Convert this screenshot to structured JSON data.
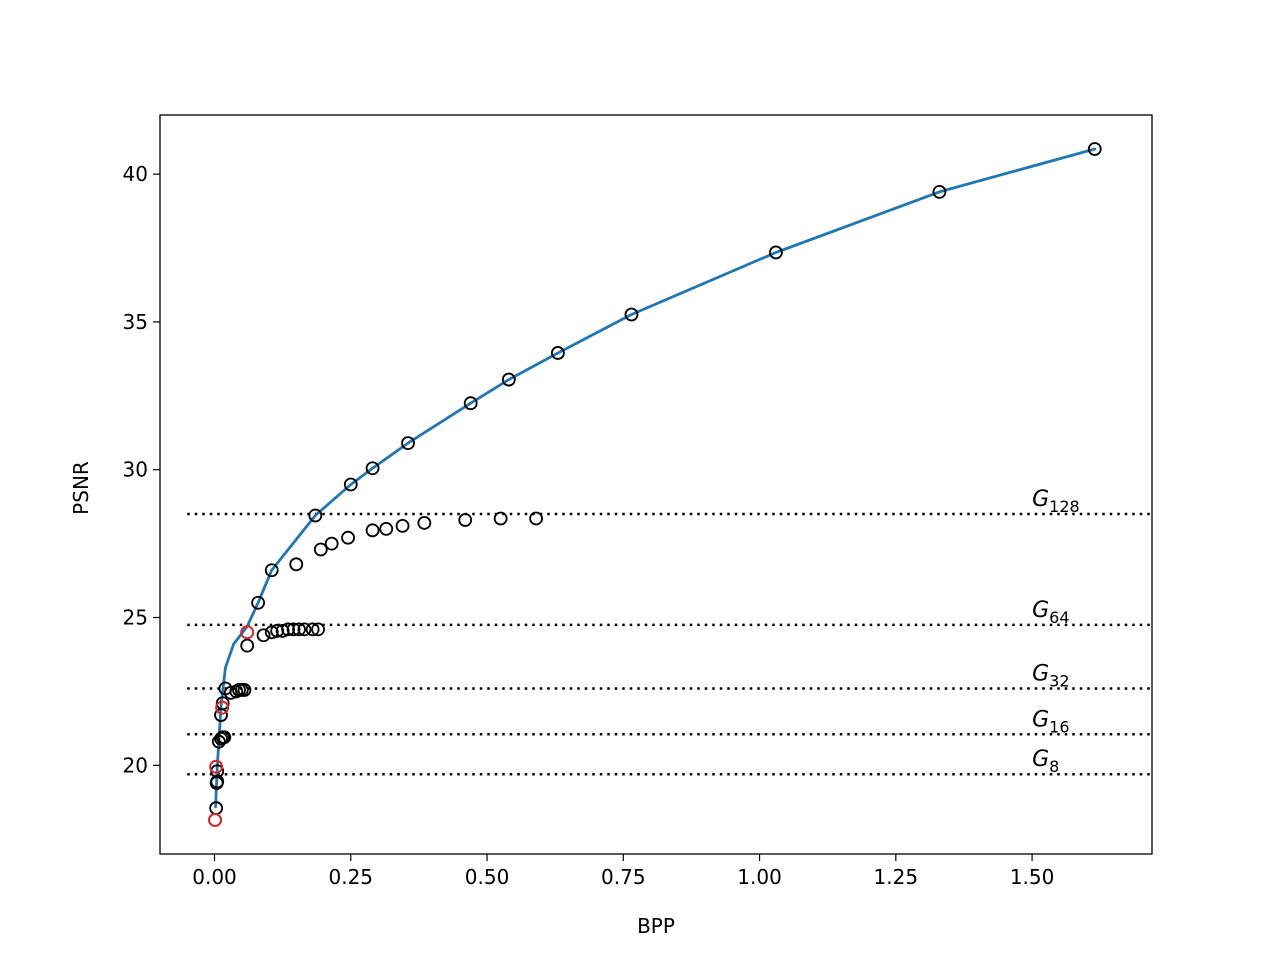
{
  "chart_data": {
    "type": "scatter",
    "title": "",
    "xlabel": "BPP",
    "ylabel": "PSNR",
    "xlim": [
      -0.1,
      1.72
    ],
    "ylim": [
      17.0,
      42.0
    ],
    "xticks": [
      0.0,
      0.25,
      0.5,
      0.75,
      1.0,
      1.25,
      1.5
    ],
    "xtick_labels": [
      "0.00",
      "0.25",
      "0.50",
      "0.75",
      "1.00",
      "1.25",
      "1.50"
    ],
    "yticks": [
      20,
      25,
      30,
      35,
      40
    ],
    "ytick_labels": [
      "20",
      "25",
      "30",
      "35",
      "40"
    ],
    "grid": false,
    "colors": {
      "curve": "#1f77b4",
      "marker": "#000000",
      "highlight": "#d62728",
      "reference": "#000000"
    },
    "series": [
      {
        "kind": "line",
        "x": [
          0.002,
          0.005,
          0.012,
          0.02,
          0.035,
          0.06,
          0.08,
          0.105,
          0.185,
          0.25,
          0.29,
          0.355,
          0.47,
          0.54,
          0.63,
          0.765,
          1.03,
          1.33,
          1.615
        ],
        "y": [
          18.6,
          19.9,
          22.0,
          23.3,
          24.1,
          24.7,
          25.5,
          26.6,
          28.45,
          29.5,
          30.05,
          30.9,
          32.25,
          33.05,
          33.95,
          35.25,
          37.35,
          39.4,
          40.85
        ]
      },
      {
        "kind": "scatter",
        "x": [
          0.185,
          0.25,
          0.29,
          0.355,
          0.47,
          0.54,
          0.63,
          0.765,
          1.03,
          1.33,
          1.615
        ],
        "y": [
          28.45,
          29.5,
          30.05,
          30.9,
          32.25,
          33.05,
          33.95,
          35.25,
          37.35,
          39.4,
          40.85
        ]
      },
      {
        "kind": "scatter",
        "x": [
          0.105,
          0.15,
          0.195,
          0.215,
          0.245,
          0.29,
          0.315,
          0.345,
          0.385,
          0.46,
          0.525,
          0.59
        ],
        "y": [
          26.6,
          26.8,
          27.3,
          27.5,
          27.7,
          27.95,
          28.0,
          28.1,
          28.2,
          28.3,
          28.35,
          28.35
        ]
      },
      {
        "kind": "scatter",
        "x": [
          0.06,
          0.08,
          0.09,
          0.105,
          0.115,
          0.125,
          0.135,
          0.145,
          0.155,
          0.165,
          0.18,
          0.19
        ],
        "y": [
          24.05,
          25.5,
          24.4,
          24.5,
          24.55,
          24.55,
          24.6,
          24.6,
          24.6,
          24.6,
          24.6,
          24.6
        ]
      },
      {
        "kind": "scatter",
        "x": [
          0.012,
          0.015,
          0.02,
          0.03,
          0.04,
          0.045,
          0.05,
          0.055
        ],
        "y": [
          21.7,
          22.1,
          22.6,
          22.45,
          22.5,
          22.55,
          22.55,
          22.55
        ]
      },
      {
        "kind": "scatter",
        "x": [
          0.008,
          0.012,
          0.015,
          0.018
        ],
        "y": [
          20.8,
          20.9,
          20.95,
          20.95
        ]
      },
      {
        "kind": "scatter",
        "x": [
          0.003,
          0.004,
          0.005,
          0.005
        ],
        "y": [
          18.55,
          19.4,
          19.45,
          19.8
        ]
      },
      {
        "kind": "scatter-highlight",
        "x": [
          0.001,
          0.003,
          0.014,
          0.06
        ],
        "y": [
          18.15,
          19.95,
          21.95,
          24.5
        ]
      }
    ],
    "reference_lines": [
      {
        "label": "G",
        "subscript": "128",
        "y": 28.5
      },
      {
        "label": "G",
        "subscript": "64",
        "y": 24.75
      },
      {
        "label": "G",
        "subscript": "32",
        "y": 22.6
      },
      {
        "label": "G",
        "subscript": "16",
        "y": 21.05
      },
      {
        "label": "G",
        "subscript": "8",
        "y": 19.7
      }
    ]
  }
}
